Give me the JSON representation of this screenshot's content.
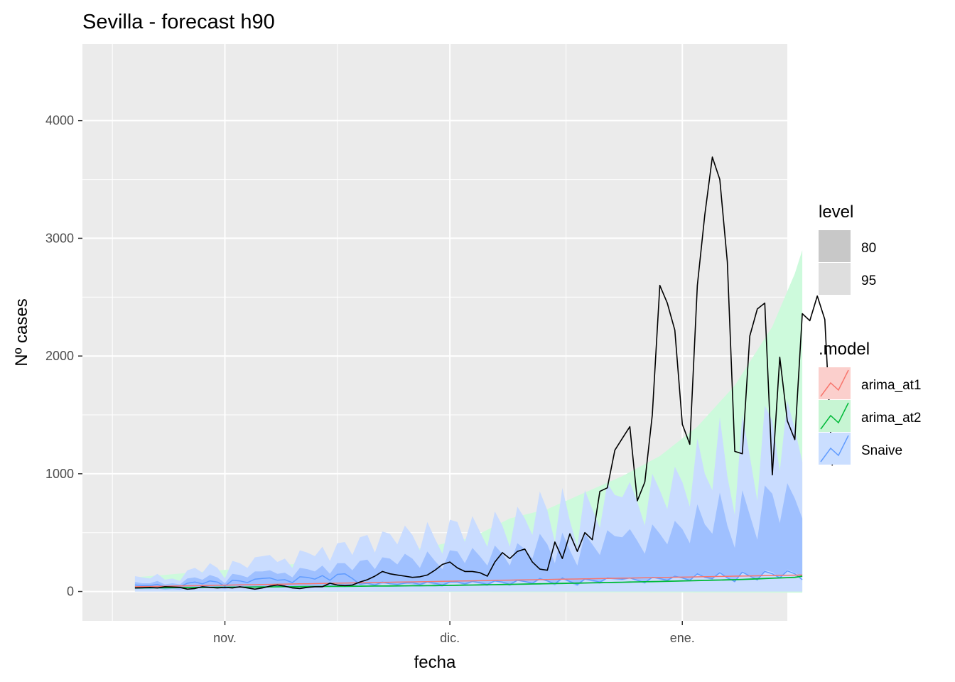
{
  "chart_data": {
    "type": "line",
    "title": "Sevilla - forecast h90",
    "xlabel": "fecha",
    "ylabel": "Nº cases",
    "x_axis": "date",
    "x_start": "2020-10-20",
    "x_range": [
      "2020-10-13",
      "2021-01-15"
    ],
    "ylim": [
      -250,
      4650
    ],
    "y_ticks": [
      0,
      1000,
      2000,
      3000,
      4000
    ],
    "x_ticks": [
      {
        "date": "2020-11-01",
        "label": "nov."
      },
      {
        "date": "2020-12-01",
        "label": "dic."
      },
      {
        "date": "2021-01-01",
        "label": "ene."
      }
    ],
    "grid": true,
    "legend_position": "right",
    "observed": {
      "color": "#000000",
      "values": [
        30,
        32,
        35,
        30,
        40,
        38,
        35,
        20,
        25,
        40,
        35,
        30,
        35,
        30,
        40,
        30,
        20,
        30,
        45,
        55,
        45,
        30,
        25,
        35,
        40,
        40,
        70,
        55,
        50,
        55,
        80,
        100,
        130,
        170,
        150,
        140,
        130,
        120,
        125,
        140,
        180,
        230,
        250,
        200,
        170,
        170,
        160,
        130,
        250,
        330,
        280,
        340,
        360,
        250,
        190,
        180,
        420,
        280,
        490,
        340,
        500,
        440,
        850,
        880,
        1200,
        1300,
        1400,
        770,
        930,
        1500,
        2600,
        2450,
        2220,
        1420,
        1250,
        2600,
        3200,
        3690,
        3500,
        2800,
        1190,
        1170,
        2170,
        2400,
        2450,
        990,
        1990,
        1450,
        1290,
        2360,
        2300,
        2510,
        2310,
        1070
      ]
    },
    "series": [
      {
        "name": "arima_at1",
        "color": "#F8766D",
        "point_start": 0,
        "points": [
          [
            0,
            40
          ],
          [
            89,
            140
          ]
        ],
        "band95": null,
        "band80": null
      },
      {
        "name": "arima_at2",
        "color": "#00BA38",
        "point_start": 0,
        "points": [
          [
            0,
            30
          ],
          [
            10,
            35
          ],
          [
            20,
            40
          ],
          [
            30,
            45
          ],
          [
            40,
            50
          ],
          [
            50,
            60
          ],
          [
            60,
            72
          ],
          [
            70,
            85
          ],
          [
            80,
            100
          ],
          [
            88,
            120
          ],
          [
            89,
            130
          ]
        ],
        "band95": {
          "lower": [
            [
              0,
              0
            ],
            [
              89,
              -10
            ]
          ],
          "upper": [
            [
              0,
              120
            ],
            [
              30,
              280
            ],
            [
              40,
              390
            ],
            [
              45,
              460
            ],
            [
              50,
              620
            ],
            [
              55,
              700
            ],
            [
              60,
              840
            ],
            [
              65,
              980
            ],
            [
              70,
              1150
            ],
            [
              75,
              1400
            ],
            [
              80,
              1750
            ],
            [
              85,
              2250
            ],
            [
              88,
              2700
            ],
            [
              89,
              2900
            ]
          ]
        }
      },
      {
        "name": "Snaive",
        "color": "#619CFF",
        "point_start": 0,
        "upper95": [
          130,
          120,
          110,
          150,
          100,
          110,
          90,
          180,
          200,
          160,
          240,
          200,
          110,
          260,
          240,
          200,
          290,
          300,
          310,
          250,
          280,
          200,
          350,
          330,
          300,
          380,
          260,
          410,
          420,
          310,
          460,
          480,
          330,
          510,
          490,
          400,
          560,
          480,
          350,
          590,
          450,
          320,
          610,
          590,
          420,
          640,
          510,
          380,
          680,
          560,
          380,
          720,
          620,
          480,
          850,
          690,
          420,
          880,
          600,
          380,
          860,
          700,
          540,
          920,
          820,
          800,
          930,
          760,
          560,
          1000,
          860,
          700,
          1060,
          930,
          720,
          1300,
          1000,
          860,
          1480,
          980,
          650,
          1500,
          1150,
          770,
          1580,
          1450,
          1020,
          1620,
          1380,
          1100
        ],
        "lower95": [
          0,
          0,
          0,
          0,
          0,
          0,
          0,
          0,
          0,
          0,
          0,
          0,
          0,
          0,
          0,
          0,
          0,
          0,
          0,
          0,
          0,
          0,
          0,
          0,
          0,
          0,
          0,
          0,
          0,
          0,
          0,
          0,
          0,
          0,
          0,
          0,
          0,
          0,
          0,
          0,
          0,
          0,
          0,
          0,
          0,
          0,
          0,
          0,
          0,
          0,
          0,
          0,
          0,
          0,
          0,
          0,
          0,
          0,
          0,
          0,
          0,
          0,
          0,
          0,
          0,
          0,
          0,
          0,
          0,
          0,
          0,
          0,
          0,
          0,
          0,
          0,
          0,
          0,
          0,
          0,
          0,
          0,
          0,
          0,
          0,
          0,
          0,
          0,
          0,
          0
        ],
        "upper80": [
          80,
          70,
          70,
          90,
          60,
          70,
          60,
          110,
          120,
          100,
          140,
          120,
          70,
          150,
          140,
          120,
          170,
          170,
          180,
          150,
          160,
          120,
          200,
          190,
          170,
          220,
          150,
          240,
          240,
          180,
          260,
          270,
          190,
          290,
          280,
          230,
          320,
          280,
          200,
          340,
          260,
          190,
          350,
          340,
          240,
          370,
          300,
          220,
          390,
          320,
          220,
          410,
          360,
          280,
          490,
          400,
          240,
          500,
          350,
          220,
          490,
          400,
          310,
          520,
          470,
          460,
          530,
          430,
          320,
          570,
          490,
          400,
          600,
          530,
          410,
          740,
          570,
          490,
          840,
          560,
          370,
          860,
          650,
          440,
          900,
          830,
          580,
          920,
          790,
          620
        ],
        "lower80": [
          20,
          20,
          20,
          25,
          15,
          20,
          15,
          30,
          30,
          25,
          35,
          30,
          20,
          35,
          35,
          30,
          40,
          40,
          45,
          35,
          40,
          30,
          45,
          45,
          40,
          50,
          35,
          55,
          55,
          40,
          60,
          60,
          45,
          65,
          65,
          50,
          70,
          60,
          45,
          75,
          55,
          40,
          75,
          75,
          50,
          80,
          65,
          45,
          85,
          70,
          45,
          90,
          80,
          60,
          100,
          85,
          50,
          105,
          75,
          45,
          100,
          85,
          65,
          110,
          100,
          95,
          110,
          90,
          65,
          120,
          100,
          85,
          125,
          110,
          85,
          150,
          115,
          100,
          170,
          115,
          75,
          175,
          130,
          90,
          180,
          165,
          115,
          185,
          160,
          125
        ],
        "values": [
          55,
          50,
          50,
          60,
          40,
          45,
          40,
          70,
          80,
          65,
          90,
          80,
          45,
          95,
          90,
          75,
          105,
          110,
          115,
          95,
          100,
          75,
          125,
          120,
          105,
          135,
          95,
          145,
          150,
          110,
          60,
          70,
          55,
          80,
          65,
          60,
          70,
          75,
          60,
          80,
          70,
          55,
          80,
          80,
          65,
          85,
          75,
          60,
          90,
          80,
          60,
          95,
          85,
          70,
          110,
          90,
          65,
          115,
          85,
          60,
          105,
          95,
          80,
          115,
          110,
          105,
          115,
          95,
          75,
          120,
          110,
          95,
          130,
          115,
          95,
          150,
          120,
          110,
          160,
          115,
          85,
          165,
          130,
          100,
          170,
          150,
          115,
          175,
          150,
          100
        ],
        "band95": null,
        "band80": null
      }
    ],
    "legend": {
      "level": {
        "title": "level",
        "items": [
          {
            "label": "80",
            "color": "#c8c8c8"
          },
          {
            "label": "95",
            "color": "#dedede"
          }
        ]
      },
      "model": {
        "title": ".model",
        "items": [
          {
            "label": "arima_at1",
            "color": "#F8766D",
            "fill": "#fbcfcc"
          },
          {
            "label": "arima_at2",
            "color": "#00BA38",
            "fill": "#c7f5d3"
          },
          {
            "label": "Snaive",
            "color": "#619CFF",
            "fill": "#cadeff"
          }
        ]
      }
    }
  }
}
